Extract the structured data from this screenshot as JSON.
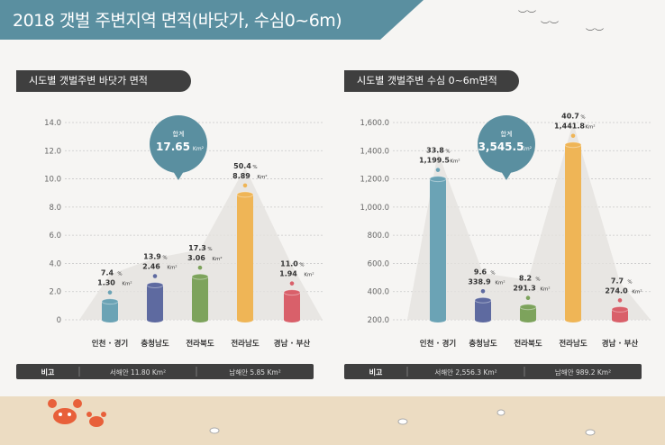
{
  "title": "2018 갯벌 주변지역 면적(바닷가, 수심0~6m)",
  "colors": {
    "header": "#5a8fa0",
    "bubble": "#5a8fa0",
    "dark": "#3f3f3f",
    "sand": "#ecdcc2"
  },
  "chart_data": [
    {
      "type": "bar",
      "title": "시도별  갯벌주변 바닷가 면적",
      "categories": [
        "인천 · 경기",
        "충청남도",
        "전라북도",
        "전라남도",
        "경남 · 부산"
      ],
      "values": [
        1.3,
        2.46,
        3.06,
        8.89,
        1.94
      ],
      "percents": [
        "7.4",
        "13.9",
        "17.3",
        "50.4",
        "11.0"
      ],
      "value_labels": [
        "1.30",
        "2.46",
        "3.06",
        "8.89",
        "1.94"
      ],
      "unit": "Km²",
      "pct_unit": "%",
      "ylim": [
        0,
        14
      ],
      "yticks": [
        "0",
        "2.0",
        "4.0",
        "6.0",
        "8.0",
        "10.0",
        "12.0",
        "14.0"
      ],
      "colors": [
        "#6ba3b5",
        "#5e6aa0",
        "#7da35c",
        "#efb556",
        "#d9606a"
      ],
      "total_label": "합계",
      "total_value": "17.65",
      "note_label": "비고",
      "note_left": "서해안 11.80 Km²",
      "note_right": "남해안 5.85 Km²"
    },
    {
      "type": "bar",
      "title": "시도별  갯벌주변 수심 0~6m면적",
      "categories": [
        "인천 · 경기",
        "충청남도",
        "전라북도",
        "전라남도",
        "경남 · 부산"
      ],
      "values": [
        1199.5,
        338.9,
        291.3,
        1441.8,
        274.0
      ],
      "percents": [
        "33.8",
        "9.6",
        "8.2",
        "40.7",
        "7.7"
      ],
      "value_labels": [
        "1,199.5",
        "338.9",
        "291.3",
        "1,441.8",
        "274.0"
      ],
      "unit": "Km²",
      "pct_unit": "%",
      "ylim": [
        200,
        1600
      ],
      "yticks": [
        "200.0",
        "400.0",
        "600.0",
        "800.0",
        "1,000.0",
        "1,200.0",
        "1,400.0",
        "1,600.0"
      ],
      "colors": [
        "#6ba3b5",
        "#5e6aa0",
        "#7da35c",
        "#efb556",
        "#d9606a"
      ],
      "total_label": "합계",
      "total_value": "3,545.5",
      "note_label": "비고",
      "note_left": "서해안 2,556.3 Km²",
      "note_right": "남해안 989.2 Km²"
    }
  ]
}
